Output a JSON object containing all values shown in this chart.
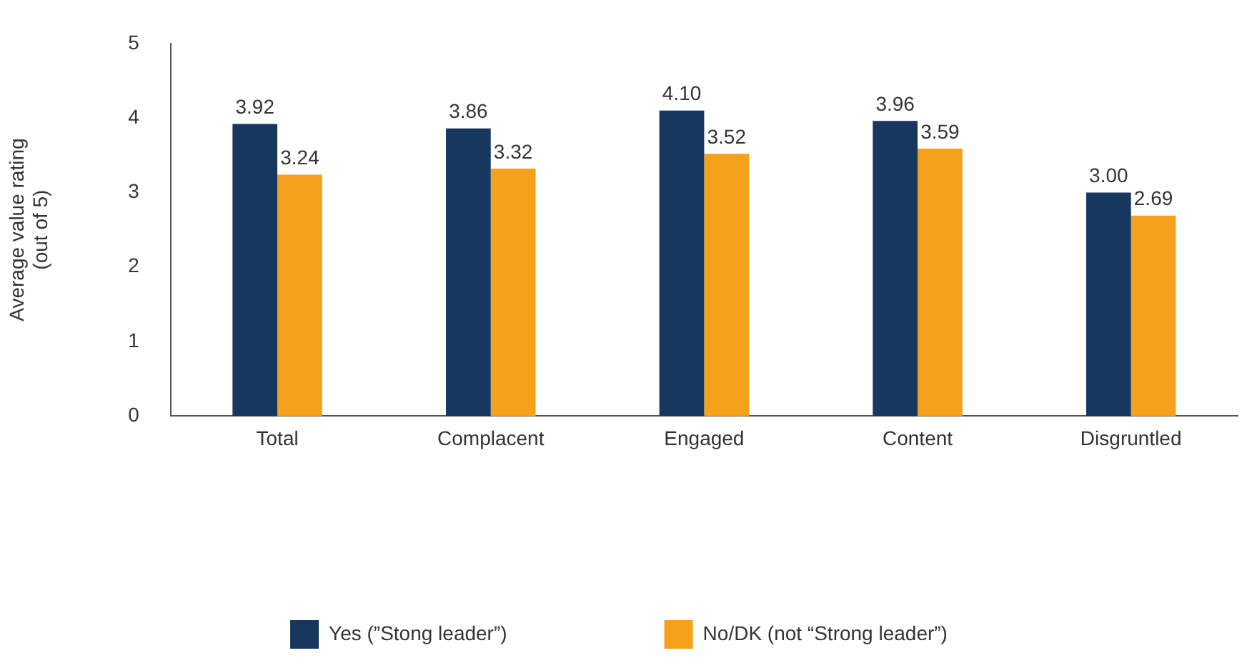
{
  "chart_data": {
    "type": "bar",
    "ylabel": "Average value rating\n(out of 5)",
    "categories": [
      "Total",
      "Complacent",
      "Engaged",
      "Content",
      "Disgruntled"
    ],
    "series": [
      {
        "name": "Yes (”Stong leader”)",
        "color": "#17375e",
        "values": [
          3.92,
          3.86,
          4.1,
          3.96,
          3.0
        ],
        "value_labels": [
          "3.92",
          "3.86",
          "4.10",
          "3.96",
          "3.00"
        ]
      },
      {
        "name": "No/DK (not “Strong leader”)",
        "color": "#f5a11c",
        "values": [
          3.24,
          3.32,
          3.52,
          3.59,
          2.69
        ],
        "value_labels": [
          "3.24",
          "3.32",
          "3.52",
          "3.59",
          "2.69"
        ]
      }
    ],
    "ylim": [
      0,
      5
    ],
    "yticks": [
      0,
      1,
      2,
      3,
      4,
      5
    ],
    "grid": false,
    "legend": "bottom"
  }
}
